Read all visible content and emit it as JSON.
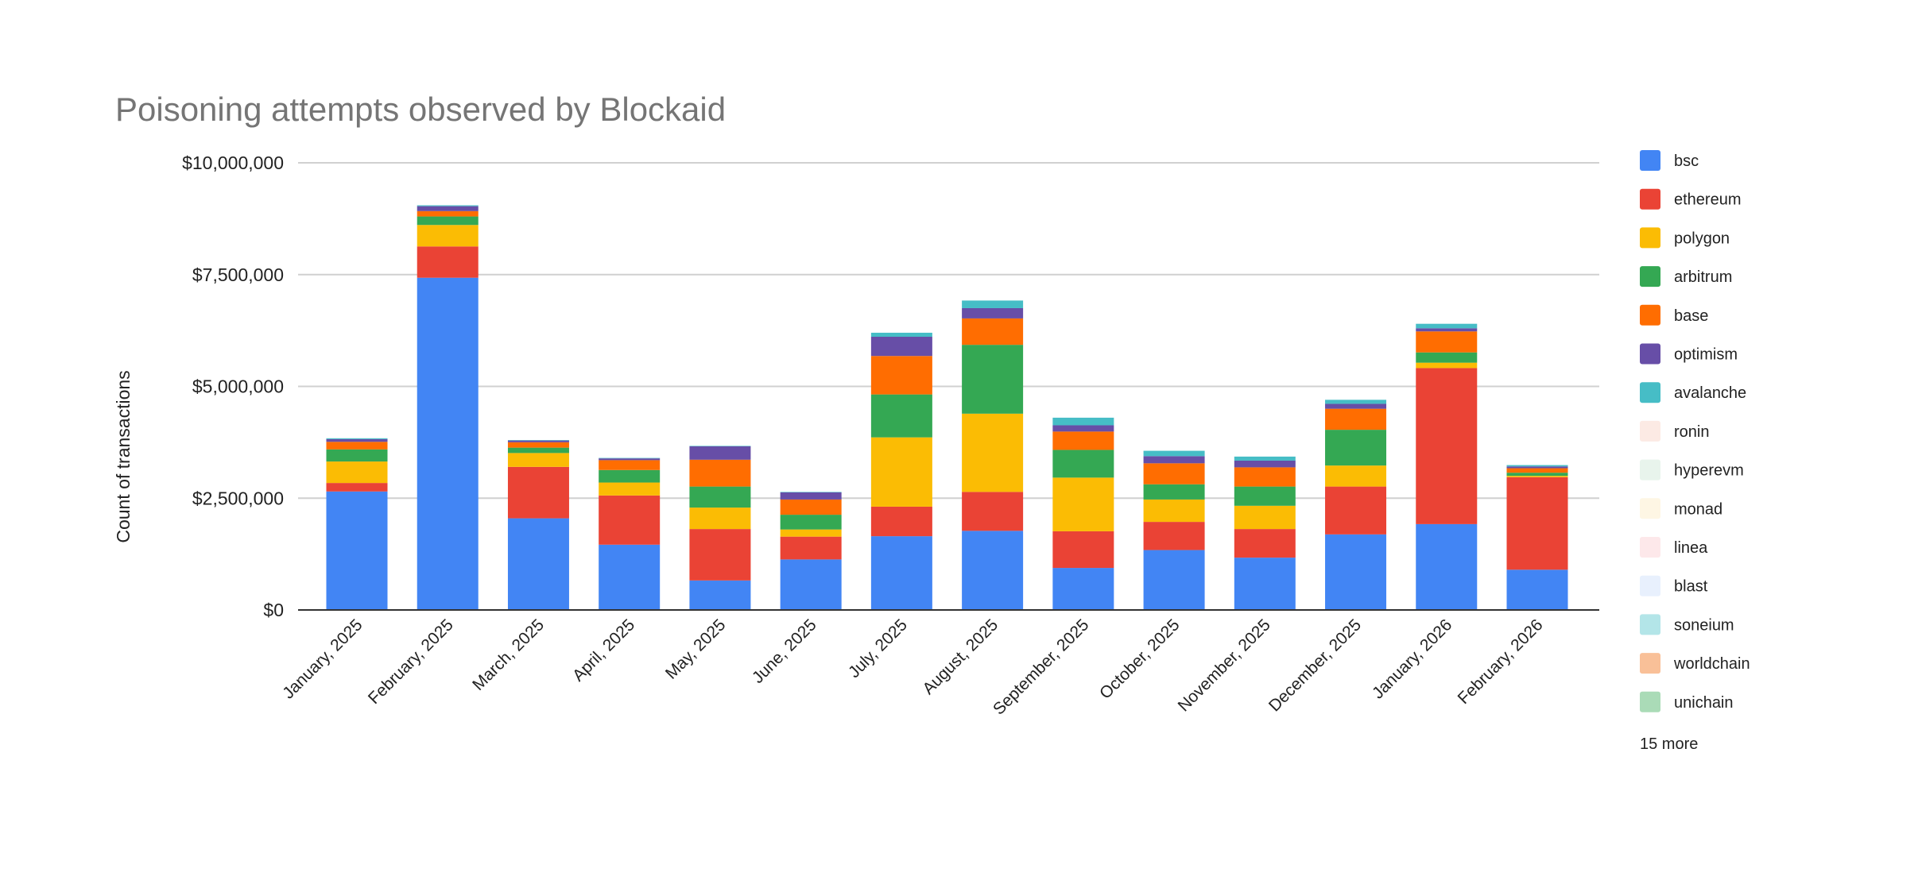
{
  "chart_data": {
    "type": "bar",
    "stacked": true,
    "title": "Poisoning attempts observed by Blockaid",
    "xlabel": "",
    "ylabel": "Count of transactions",
    "ylim": [
      0,
      10000000
    ],
    "yticks": [
      0,
      2500000,
      5000000,
      7500000,
      10000000
    ],
    "ytick_labels": [
      "$0",
      "$2,500,000",
      "$5,000,000",
      "$7,500,000",
      "$10,000,000"
    ],
    "grid": true,
    "legend_position": "right",
    "legend_more": "15 more",
    "categories": [
      "January, 2025",
      "February, 2025",
      "March, 2025",
      "April, 2025",
      "May, 2025",
      "June, 2025",
      "July, 2025",
      "August, 2025",
      "September, 2025",
      "October, 2025",
      "November, 2025",
      "December, 2025",
      "January, 2026",
      "February, 2026"
    ],
    "series": [
      {
        "name": "bsc",
        "color": "#4285F4",
        "values": [
          2650000,
          7430000,
          2050000,
          1460000,
          660000,
          1130000,
          1650000,
          1770000,
          940000,
          1340000,
          1170000,
          1690000,
          1920000,
          900000
        ]
      },
      {
        "name": "ethereum",
        "color": "#EA4335",
        "values": [
          190000,
          700000,
          1150000,
          1100000,
          1150000,
          510000,
          660000,
          870000,
          820000,
          630000,
          640000,
          1070000,
          3490000,
          2070000
        ]
      },
      {
        "name": "polygon",
        "color": "#FBBC04",
        "values": [
          480000,
          480000,
          310000,
          290000,
          480000,
          160000,
          1550000,
          1750000,
          1200000,
          500000,
          520000,
          470000,
          120000,
          30000
        ]
      },
      {
        "name": "arbitrum",
        "color": "#34A853",
        "values": [
          270000,
          190000,
          120000,
          280000,
          470000,
          330000,
          960000,
          1540000,
          620000,
          340000,
          430000,
          800000,
          230000,
          70000
        ]
      },
      {
        "name": "base",
        "color": "#FF6D01",
        "values": [
          170000,
          120000,
          120000,
          220000,
          600000,
          340000,
          860000,
          590000,
          410000,
          470000,
          430000,
          470000,
          470000,
          100000
        ]
      },
      {
        "name": "optimism",
        "color": "#674EA7",
        "values": [
          60000,
          110000,
          40000,
          40000,
          300000,
          160000,
          430000,
          230000,
          140000,
          160000,
          150000,
          110000,
          70000,
          40000
        ]
      },
      {
        "name": "avalanche",
        "color": "#46BDC6",
        "values": [
          20000,
          20000,
          10000,
          10000,
          10000,
          10000,
          90000,
          170000,
          170000,
          120000,
          90000,
          90000,
          100000,
          30000
        ]
      },
      {
        "name": "ronin",
        "color": "#FCEAE4"
      },
      {
        "name": "hyperevm",
        "color": "#E8F4EC"
      },
      {
        "name": "monad",
        "color": "#FEF6E4"
      },
      {
        "name": "linea",
        "color": "#FDE8EA"
      },
      {
        "name": "blast",
        "color": "#E8F0FD"
      },
      {
        "name": "soneium",
        "color": "#B3E5E8"
      },
      {
        "name": "worldchain",
        "color": "#F9C098"
      },
      {
        "name": "unichain",
        "color": "#AADBB7"
      }
    ]
  }
}
